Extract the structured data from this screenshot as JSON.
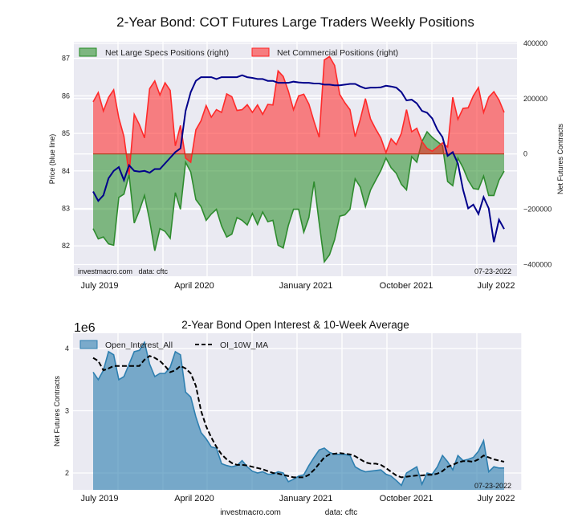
{
  "title": "2-Year Bond: COT Futures Large Traders Weekly Positions",
  "footer": {
    "site": "investmacro.com",
    "source": "data: cftc"
  },
  "colors": {
    "background": "#eaeaf2",
    "price": "#00008b",
    "specs": "#228b22",
    "commercial": "#ff2222",
    "open_interest": "#2e7fb0",
    "ma": "#000000"
  },
  "chart_data": [
    {
      "type": "area",
      "title": "2-Year Bond: COT Futures Large Traders Weekly Positions",
      "ylabel_left": "Price (blue line)",
      "ylabel_right": "Net Futures Contracts",
      "ylim_left": [
        81.4,
        87.3
      ],
      "ylim_right": [
        -440000,
        400000
      ],
      "yticks_left": [
        "82",
        "83",
        "84",
        "85",
        "86",
        "87"
      ],
      "yticks_right": [
        "400000",
        "200000",
        "0",
        "−200000",
        "−400000"
      ],
      "xticks": [
        "July 2019",
        "April 2020",
        "January 2021",
        "October 2021",
        "July 2022"
      ],
      "grid": true,
      "legend": "top-left",
      "watermark": "investmacro.com   data: cftc",
      "date_stamp": "07-23-2022",
      "x_start": "2019-06-25",
      "x_end": "2022-07-19",
      "x_interval": "2W",
      "series": [
        {
          "name": "Net Large Specs Positions (right)",
          "axis": "right",
          "values": [
            -270000,
            -307000,
            -300000,
            -325000,
            -330000,
            -157000,
            -145000,
            -75000,
            -250000,
            -205000,
            -150000,
            -240000,
            -350000,
            -270000,
            -280000,
            -305000,
            -140000,
            -200000,
            -30000,
            -65000,
            -165000,
            -190000,
            -240000,
            -217000,
            -200000,
            -260000,
            -300000,
            -290000,
            -230000,
            -240000,
            -257000,
            -215000,
            -255000,
            -210000,
            -245000,
            -240000,
            -330000,
            -340000,
            -258000,
            -200000,
            -200000,
            -283000,
            -230000,
            -100000,
            -250000,
            -390000,
            -365000,
            -310000,
            -225000,
            -220000,
            -200000,
            -90000,
            -120000,
            -190000,
            -130000,
            -95000,
            -60000,
            -15000,
            -50000,
            -70000,
            -110000,
            -130000,
            -10000,
            -30000,
            45000,
            80000,
            60000,
            45000,
            30000,
            -100000,
            -115000,
            -15000,
            -50000,
            -95000,
            -125000,
            -128000,
            -80000,
            -150000,
            -150000,
            -95000,
            -62000
          ]
        },
        {
          "name": "Net Commercial Positions (right)",
          "axis": "right",
          "values": [
            188000,
            222000,
            155000,
            204000,
            232000,
            130000,
            63000,
            -75000,
            143000,
            106000,
            58000,
            236000,
            264000,
            213000,
            257000,
            230000,
            29000,
            103000,
            -15000,
            -30000,
            87000,
            120000,
            175000,
            133000,
            160000,
            150000,
            217000,
            207000,
            157000,
            160000,
            178000,
            150000,
            177000,
            143000,
            179000,
            177000,
            300000,
            280000,
            227000,
            160000,
            210000,
            216000,
            180000,
            117000,
            60000,
            340000,
            352000,
            320000,
            215000,
            185000,
            160000,
            62000,
            125000,
            200000,
            126000,
            90000,
            58000,
            5000,
            55000,
            34000,
            75000,
            160000,
            80000,
            93000,
            45000,
            20000,
            10000,
            24000,
            40000,
            25000,
            205000,
            125000,
            165000,
            167000,
            210000,
            240000,
            150000,
            205000,
            225000,
            195000,
            150000
          ]
        },
        {
          "name": "Price (blue line)",
          "axis": "left",
          "values": [
            83.45,
            83.2,
            83.35,
            83.8,
            84.0,
            84.1,
            83.75,
            84.15,
            84.0,
            83.98,
            84.0,
            83.95,
            84.05,
            84.05,
            84.2,
            84.35,
            84.5,
            84.6,
            85.6,
            86.1,
            86.4,
            86.5,
            86.5,
            86.5,
            86.45,
            86.5,
            86.5,
            86.5,
            86.5,
            86.55,
            86.5,
            86.48,
            86.45,
            86.45,
            86.4,
            86.4,
            86.35,
            86.35,
            86.35,
            86.38,
            86.36,
            86.35,
            86.35,
            86.33,
            86.33,
            86.3,
            86.3,
            86.28,
            86.28,
            86.3,
            86.32,
            86.32,
            86.25,
            86.2,
            86.22,
            86.22,
            86.23,
            86.27,
            86.25,
            86.22,
            86.1,
            85.88,
            85.9,
            85.8,
            85.6,
            85.55,
            85.4,
            85.1,
            84.9,
            84.4,
            84.5,
            84.2,
            83.5,
            83.0,
            83.1,
            82.85,
            83.3,
            83.0,
            82.1,
            82.7,
            82.45
          ]
        }
      ]
    },
    {
      "type": "area",
      "title": "2-Year Bond Open Interest & 10-Week Average",
      "ylabel": "Net Futures Contracts",
      "y_scale_label": "1e6",
      "ylim": [
        1.72,
        4.25
      ],
      "yticks": [
        "2",
        "3",
        "4"
      ],
      "xticks": [
        "July 2019",
        "April 2020",
        "January 2021",
        "October 2021",
        "July 2022"
      ],
      "grid": true,
      "legend": "top-left",
      "date_stamp": "07-23-2022",
      "x_start": "2019-06-25",
      "x_end": "2022-07-19",
      "x_interval": "2W",
      "series": [
        {
          "name": "Open_Interest_All",
          "values": [
            3.62,
            3.5,
            3.65,
            3.95,
            3.9,
            3.5,
            3.55,
            3.75,
            3.95,
            3.97,
            4.1,
            3.75,
            3.55,
            3.6,
            3.6,
            3.7,
            3.95,
            3.9,
            3.3,
            3.22,
            2.9,
            2.65,
            2.55,
            2.42,
            2.4,
            2.15,
            2.12,
            2.1,
            2.12,
            2.2,
            2.1,
            2.03,
            2.0,
            2.02,
            1.98,
            1.98,
            2.02,
            2.0,
            1.86,
            1.9,
            1.95,
            1.97,
            2.12,
            2.25,
            2.37,
            2.4,
            2.33,
            2.3,
            2.3,
            2.3,
            2.28,
            2.1,
            2.05,
            2.02,
            2.03,
            2.04,
            2.05,
            1.98,
            1.95,
            1.88,
            1.8,
            2.0,
            2.05,
            2.1,
            1.82,
            2.0,
            1.98,
            2.1,
            2.28,
            2.18,
            2.05,
            2.28,
            2.2,
            2.22,
            2.25,
            2.35,
            2.52,
            2.02,
            2.1,
            2.08,
            2.08
          ]
        },
        {
          "name": "OI_10W_MA",
          "values": [
            3.85,
            3.8,
            3.65,
            3.68,
            3.72,
            3.72,
            3.72,
            3.72,
            3.72,
            3.72,
            3.82,
            3.88,
            3.85,
            3.8,
            3.72,
            3.62,
            3.65,
            3.72,
            3.68,
            3.6,
            3.4,
            3.0,
            2.75,
            2.57,
            2.42,
            2.3,
            2.22,
            2.16,
            2.13,
            2.13,
            2.12,
            2.1,
            2.08,
            2.06,
            2.03,
            2.0,
            1.99,
            1.97,
            1.95,
            1.93,
            1.93,
            1.93,
            1.97,
            2.05,
            2.15,
            2.25,
            2.3,
            2.31,
            2.32,
            2.31,
            2.3,
            2.27,
            2.22,
            2.17,
            2.15,
            2.15,
            2.13,
            2.08,
            2.02,
            1.96,
            1.93,
            1.94,
            1.95,
            1.96,
            1.96,
            1.97,
            1.97,
            1.99,
            2.03,
            2.1,
            2.13,
            2.17,
            2.19,
            2.19,
            2.18,
            2.22,
            2.28,
            2.25,
            2.22,
            2.2,
            2.18
          ]
        }
      ]
    }
  ]
}
